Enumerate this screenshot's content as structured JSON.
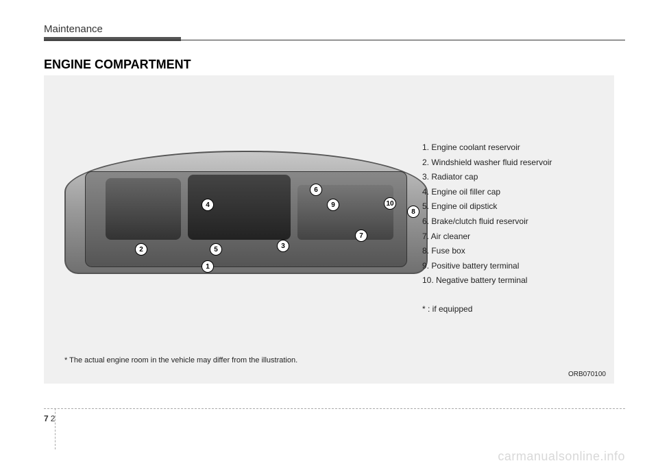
{
  "header": {
    "breadcrumb": "Maintenance",
    "section_title": "ENGINE COMPARTMENT"
  },
  "figure": {
    "callouts": [
      {
        "n": "1"
      },
      {
        "n": "2"
      },
      {
        "n": "3"
      },
      {
        "n": "4"
      },
      {
        "n": "5"
      },
      {
        "n": "6"
      },
      {
        "n": "7"
      },
      {
        "n": "8"
      },
      {
        "n": "9"
      },
      {
        "n": "10"
      }
    ],
    "legend": [
      "1. Engine coolant reservoir",
      "2. Windshield washer fluid reservoir",
      "3. Radiator cap",
      "4. Engine oil filler cap",
      "5. Engine oil dipstick",
      "6. Brake/clutch fluid reservoir",
      "7. Air cleaner",
      "8. Fuse box",
      "9. Positive battery terminal",
      "10. Negative battery terminal"
    ],
    "legend_note": "* : if equipped",
    "footnote": "* The actual engine room in the vehicle may differ from the illustration.",
    "figure_id": "ORB070100"
  },
  "page": {
    "section_number": "7",
    "page_number": "2"
  },
  "watermark": "carmanualsonline.info",
  "colors": {
    "page_bg": "#ffffff",
    "figure_bg": "#f0f0f0",
    "text": "#222222",
    "rule": "#333333"
  }
}
